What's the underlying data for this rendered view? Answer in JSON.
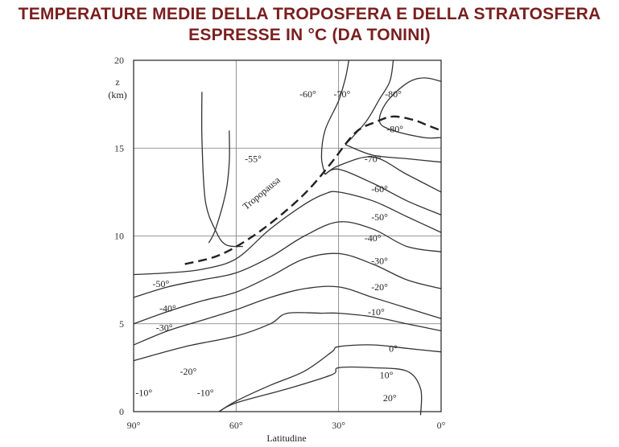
{
  "title_line1": "TEMPERATURE MEDIE DELLA TROPOSFERA E DELLA STRATOSFERA",
  "title_line2": "ESPRESSE IN °C (DA TONINI)",
  "chart_data": {
    "type": "contour",
    "xlabel": "Latitudine",
    "ylabel_line1": "z",
    "ylabel_line2": "(km)",
    "xlim": [
      90,
      0
    ],
    "ylim": [
      0,
      20
    ],
    "x_ticks": [
      {
        "value": 90,
        "label": "90°"
      },
      {
        "value": 60,
        "label": "60°"
      },
      {
        "value": 30,
        "label": "30°"
      },
      {
        "value": 0,
        "label": "0°"
      }
    ],
    "y_ticks": [
      {
        "value": 0,
        "label": "0"
      },
      {
        "value": 5,
        "label": "5"
      },
      {
        "value": 10,
        "label": "10"
      },
      {
        "value": 15,
        "label": "15"
      },
      {
        "value": 20,
        "label": "20"
      }
    ],
    "grid": true,
    "tropopause": {
      "label": "Tropopausa",
      "points": [
        [
          75,
          8.4
        ],
        [
          65,
          8.9
        ],
        [
          55,
          10.0
        ],
        [
          45,
          11.5
        ],
        [
          38,
          12.8
        ],
        [
          32,
          14.2
        ],
        [
          25,
          15.9
        ],
        [
          19,
          16.5
        ],
        [
          14,
          16.8
        ],
        [
          8,
          16.6
        ],
        [
          4,
          16.3
        ],
        [
          0,
          16.0
        ]
      ]
    },
    "isotherms": [
      {
        "label": "20°",
        "points": [
          [
            6,
            -0.2
          ],
          [
            6,
            1.3
          ],
          [
            10,
            2.3
          ],
          [
            20,
            2.5
          ],
          [
            30,
            2.5
          ],
          [
            32,
            2.1
          ],
          [
            45,
            1.3
          ],
          [
            60,
            0.5
          ],
          [
            65,
            0
          ]
        ]
      },
      {
        "label": "10°",
        "points": [
          [
            65,
            0
          ],
          [
            60,
            0.6
          ],
          [
            50,
            1.5
          ],
          [
            40,
            2.3
          ],
          [
            32,
            3.4
          ],
          [
            30,
            3.7
          ],
          [
            20,
            3.8
          ],
          [
            10,
            3.6
          ],
          [
            0,
            3.4
          ]
        ]
      },
      {
        "label": "0°",
        "points": [
          [
            90,
            2.9
          ],
          [
            75,
            3.7
          ],
          [
            60,
            4.3
          ],
          [
            50,
            5.0
          ],
          [
            45,
            5.6
          ],
          [
            35,
            5.6
          ],
          [
            30,
            5.6
          ],
          [
            20,
            5.4
          ],
          [
            10,
            5.0
          ],
          [
            0,
            4.6
          ]
        ]
      },
      {
        "label": "-10°",
        "points": [
          [
            90,
            3.8
          ],
          [
            80,
            4.6
          ],
          [
            70,
            5.2
          ],
          [
            60,
            5.8
          ],
          [
            50,
            6.5
          ],
          [
            40,
            7.0
          ],
          [
            30,
            7.1
          ],
          [
            20,
            6.5
          ],
          [
            10,
            5.9
          ],
          [
            0,
            5.3
          ]
        ]
      },
      {
        "label": "-20°",
        "points": [
          [
            90,
            5.0
          ],
          [
            80,
            5.7
          ],
          [
            70,
            6.3
          ],
          [
            60,
            6.8
          ],
          [
            50,
            7.7
          ],
          [
            40,
            8.7
          ],
          [
            30,
            9.0
          ],
          [
            20,
            8.4
          ],
          [
            10,
            7.5
          ],
          [
            0,
            7.0
          ]
        ]
      },
      {
        "label": "-30°",
        "points": [
          [
            90,
            6.5
          ],
          [
            80,
            7.1
          ],
          [
            70,
            7.5
          ],
          [
            60,
            7.9
          ],
          [
            50,
            8.8
          ],
          [
            40,
            10.0
          ],
          [
            30,
            10.8
          ],
          [
            20,
            10.4
          ],
          [
            10,
            9.4
          ],
          [
            0,
            9.1
          ]
        ]
      },
      {
        "label": "-40°",
        "points": [
          [
            90,
            7.8
          ],
          [
            80,
            7.9
          ],
          [
            70,
            8.1
          ],
          [
            60,
            8.7
          ],
          [
            50,
            10.4
          ],
          [
            40,
            11.8
          ],
          [
            34,
            12.4
          ],
          [
            30,
            12.5
          ],
          [
            20,
            12.0
          ],
          [
            10,
            11.1
          ],
          [
            0,
            10.2
          ]
        ]
      },
      {
        "label": "-50°",
        "points": [
          [
            34,
            13.5
          ],
          [
            30,
            13.8
          ],
          [
            20,
            13.0
          ],
          [
            10,
            12.0
          ],
          [
            0,
            11.2
          ]
        ]
      },
      {
        "label": "-60°",
        "points": [
          [
            34,
            13.5
          ],
          [
            30,
            14.0
          ],
          [
            20,
            14.5
          ],
          [
            10,
            13.5
          ],
          [
            0,
            12.5
          ]
        ]
      },
      {
        "label": "-55°",
        "points": [
          [
            70,
            18.2
          ],
          [
            70,
            15.5
          ],
          [
            69,
            12.0
          ],
          [
            66,
            10.3
          ],
          [
            63,
            9.5
          ],
          [
            58,
            9.4
          ]
        ]
      },
      {
        "label": "",
        "points": [
          [
            68,
            9.6
          ],
          [
            66,
            10.4
          ],
          [
            63,
            12.5
          ],
          [
            62,
            14.2
          ],
          [
            62,
            16.0
          ]
        ]
      },
      {
        "label": "-60°",
        "points": [
          [
            34,
            13.5
          ],
          [
            35,
            14.5
          ],
          [
            34,
            16.0
          ],
          [
            30,
            17.7
          ],
          [
            28,
            19.0
          ],
          [
            27,
            20
          ]
        ]
      },
      {
        "label": "-70°",
        "points": [
          [
            28,
            15.2
          ],
          [
            22,
            16.5
          ],
          [
            18,
            17.8
          ],
          [
            15,
            18.8
          ],
          [
            14,
            20
          ]
        ]
      },
      {
        "label": "-70°",
        "points": [
          [
            28,
            15.2
          ],
          [
            20,
            14.6
          ],
          [
            10,
            14.4
          ],
          [
            0,
            14.2
          ]
        ]
      },
      {
        "label": "-80°",
        "points": [
          [
            0,
            18.8
          ],
          [
            5,
            19.0
          ],
          [
            10,
            18.7
          ],
          [
            16,
            17.6
          ],
          [
            18,
            16.5
          ],
          [
            14,
            16.0
          ],
          [
            5,
            15.6
          ],
          [
            0,
            15.6
          ]
        ]
      }
    ],
    "labels": [
      {
        "text": "-60°",
        "x": 39,
        "y": 17.9
      },
      {
        "text": "-70°",
        "x": 29,
        "y": 17.9
      },
      {
        "text": "-80°",
        "x": 14,
        "y": 17.9
      },
      {
        "text": "-80°",
        "x": 13.5,
        "y": 15.9
      },
      {
        "text": "-55°",
        "x": 55,
        "y": 14.2
      },
      {
        "text": "-70°",
        "x": 20,
        "y": 14.2
      },
      {
        "text": "-60°",
        "x": 18,
        "y": 12.5
      },
      {
        "text": "-50°",
        "x": 18,
        "y": 10.9
      },
      {
        "text": "-40°",
        "x": 20,
        "y": 9.7
      },
      {
        "text": "-30°",
        "x": 18,
        "y": 8.4
      },
      {
        "text": "-20°",
        "x": 18,
        "y": 6.9
      },
      {
        "text": "-10°",
        "x": 19,
        "y": 5.5
      },
      {
        "text": "0°",
        "x": 14,
        "y": 3.4
      },
      {
        "text": "10°",
        "x": 16,
        "y": 1.9
      },
      {
        "text": "20°",
        "x": 15,
        "y": 0.6
      },
      {
        "text": "-50°",
        "x": 82,
        "y": 7.1
      },
      {
        "text": "-40°",
        "x": 80,
        "y": 5.7
      },
      {
        "text": "-30°",
        "x": 81,
        "y": 4.6
      },
      {
        "text": "-20°",
        "x": 74,
        "y": 2.1
      },
      {
        "text": "-10°",
        "x": 69,
        "y": 0.9
      },
      {
        "text": "-10°",
        "x": 87,
        "y": 0.9
      }
    ]
  }
}
